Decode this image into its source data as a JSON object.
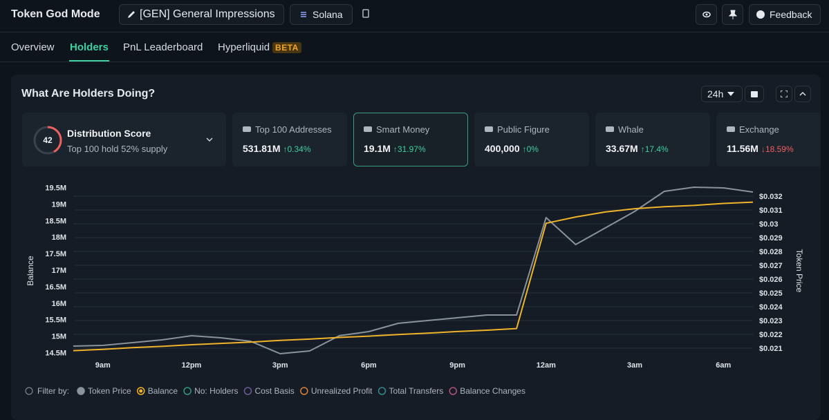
{
  "header": {
    "title": "Token God Mode",
    "token": "[GEN] General Impressions",
    "chain": "Solana",
    "feedback": "Feedback"
  },
  "tabs": [
    {
      "label": "Overview",
      "active": false
    },
    {
      "label": "Holders",
      "active": true
    },
    {
      "label": "PnL Leaderboard",
      "active": false
    },
    {
      "label": "Hyperliquid",
      "active": false,
      "badge": "BETA"
    }
  ],
  "panel": {
    "title": "What Are Holders Doing?",
    "timeframe": "24h",
    "distribution": {
      "score": 42,
      "title": "Distribution Score",
      "subtitle": "Top 100 hold 52% supply"
    },
    "cards": [
      {
        "label": "Top 100 Addresses",
        "value": "531.81M",
        "change": "0.34%",
        "direction": "up",
        "selected": false
      },
      {
        "label": "Smart Money",
        "value": "19.1M",
        "change": "31.97%",
        "direction": "up",
        "selected": true
      },
      {
        "label": "Public Figure",
        "value": "400,000",
        "change": "0%",
        "direction": "up",
        "selected": false
      },
      {
        "label": "Whale",
        "value": "33.67M",
        "change": "17.4%",
        "direction": "up",
        "selected": false
      },
      {
        "label": "Exchange",
        "value": "11.56M",
        "change": "18.59%",
        "direction": "down",
        "selected": false
      }
    ]
  },
  "chart_data": {
    "type": "line",
    "ylabel": "Balance",
    "y2label": "Token Price",
    "categories": [
      null,
      "9am",
      null,
      null,
      "12pm",
      null,
      null,
      "3pm",
      null,
      null,
      "6pm",
      null,
      null,
      "9pm",
      null,
      null,
      "12am",
      null,
      null,
      "3am",
      null,
      null,
      "6am",
      null
    ],
    "ylim": [
      14300000,
      19700000
    ],
    "yticks": [
      {
        "value": 14500000,
        "label": "14.5M"
      },
      {
        "value": 15000000,
        "label": "15M"
      },
      {
        "value": 15500000,
        "label": "15.5M"
      },
      {
        "value": 16000000,
        "label": "16M"
      },
      {
        "value": 16500000,
        "label": "16.5M"
      },
      {
        "value": 17000000,
        "label": "17M"
      },
      {
        "value": 17500000,
        "label": "17.5M"
      },
      {
        "value": 18000000,
        "label": "18M"
      },
      {
        "value": 18500000,
        "label": "18.5M"
      },
      {
        "value": 19000000,
        "label": "19M"
      },
      {
        "value": 19500000,
        "label": "19.5M"
      }
    ],
    "y2lim": [
      0.0202,
      0.0331
    ],
    "y2ticks": [
      {
        "value": 0.021,
        "label": "$0.021"
      },
      {
        "value": 0.022,
        "label": "$0.022"
      },
      {
        "value": 0.023,
        "label": "$0.023"
      },
      {
        "value": 0.024,
        "label": "$0.024"
      },
      {
        "value": 0.025,
        "label": "$0.025"
      },
      {
        "value": 0.026,
        "label": "$0.026"
      },
      {
        "value": 0.027,
        "label": "$0.027"
      },
      {
        "value": 0.028,
        "label": "$0.028"
      },
      {
        "value": 0.029,
        "label": "$0.029"
      },
      {
        "value": 0.03,
        "label": "$0.03"
      },
      {
        "value": 0.031,
        "label": "$0.031"
      },
      {
        "value": 0.032,
        "label": "$0.032"
      }
    ],
    "grid": "y2",
    "series": [
      {
        "name": "Token Price",
        "color": "#8a939c",
        "axis": "y2",
        "values": [
          0.02115,
          0.0212,
          0.0214,
          0.0216,
          0.0219,
          0.02175,
          0.0215,
          0.0206,
          0.0208,
          0.0219,
          0.0222,
          0.0228,
          0.023,
          0.0232,
          0.0234,
          0.0234,
          0.03045,
          0.0285,
          0.0297,
          0.0309,
          0.03235,
          0.03265,
          0.0326,
          0.0323
        ]
      },
      {
        "name": "Balance",
        "color": "#f0b429",
        "values": [
          14560000,
          14600000,
          14650000,
          14690000,
          14740000,
          14780000,
          14820000,
          14870000,
          14910000,
          14960000,
          15000000,
          15050000,
          15090000,
          15140000,
          15180000,
          15230000,
          18420000,
          18610000,
          18760000,
          18860000,
          18920000,
          18960000,
          19020000,
          19060000
        ]
      }
    ],
    "filter_label": "Filter by:",
    "other_filters": [
      {
        "name": "No: Holders",
        "color": "#2f9a7c"
      },
      {
        "name": "Cost Basis",
        "color": "#6e5b9c"
      },
      {
        "name": "Unrealized Profit",
        "color": "#d9823a"
      },
      {
        "name": "Total Transfers",
        "color": "#2f8a8a"
      },
      {
        "name": "Balance Changes",
        "color": "#b5527a"
      }
    ]
  }
}
